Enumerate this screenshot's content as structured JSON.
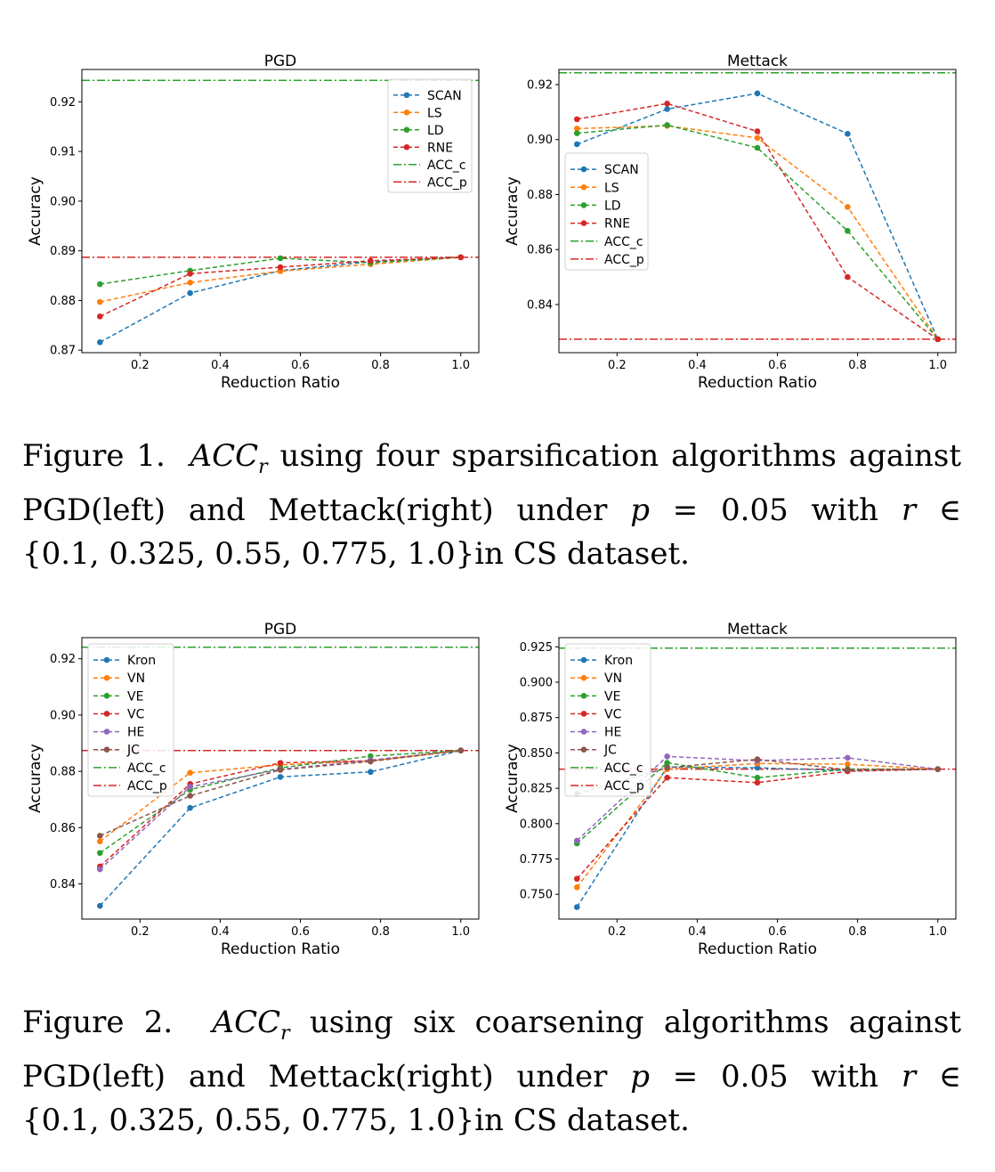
{
  "figures": [
    {
      "caption": {
        "label": "Figure 1.",
        "acc_symbol": "ACC",
        "acc_subscript": "r",
        "line1_text": "using four sparsification algorithms against",
        "line2_prefix": "PGD(left) and Mettack(right) under",
        "p_symbol": "p",
        "equals": "=",
        "p_value": "0.05",
        "with_word": "with",
        "r_symbol": "r",
        "in_symbol": "∈",
        "set_text": "{0.1, 0.325, 0.55, 0.775, 1.0}",
        "dataset_text": "in CS dataset."
      }
    },
    {
      "caption": {
        "label": "Figure 2.",
        "acc_symbol": "ACC",
        "acc_subscript": "r",
        "line1_text": "using six coarsening algorithms against",
        "line2_prefix": "PGD(left) and Mettack(right) under",
        "p_symbol": "p",
        "equals": "=",
        "p_value": "0.05",
        "with_word": "with",
        "r_symbol": "r",
        "in_symbol": "∈",
        "set_text": "{0.1, 0.325, 0.55, 0.775, 1.0}",
        "dataset_text": "in CS dataset."
      }
    }
  ],
  "chart_data": [
    {
      "type": "line",
      "title": "PGD",
      "xlabel": "Reduction Ratio",
      "ylabel": "Accuracy",
      "xlim": [
        0.055,
        1.045
      ],
      "ylim": [
        0.8695,
        0.9265
      ],
      "xticks": [
        "0.2",
        "0.4",
        "0.6",
        "0.8",
        "1.0"
      ],
      "yticks": [
        "0.87",
        "0.88",
        "0.89",
        "0.90",
        "0.91",
        "0.92"
      ],
      "legend": "top-right",
      "x": [
        0.1,
        0.325,
        0.55,
        0.775,
        1.0
      ],
      "series": [
        {
          "name": "SCAN",
          "color": "#1f77b4",
          "values": [
            0.8716,
            0.8815,
            0.886,
            0.8878,
            0.8887
          ]
        },
        {
          "name": "LS",
          "color": "#ff7f0e",
          "values": [
            0.8797,
            0.8836,
            0.8859,
            0.8873,
            0.8887
          ]
        },
        {
          "name": "LD",
          "color": "#2ca02c",
          "values": [
            0.8833,
            0.886,
            0.8885,
            0.8876,
            0.8887
          ]
        },
        {
          "name": "RNE",
          "color": "#d62728",
          "values": [
            0.8768,
            0.8854,
            0.8867,
            0.888,
            0.8887
          ]
        }
      ],
      "hlines": [
        {
          "name": "ACC_c",
          "color": "#2ca02c",
          "value": 0.9243
        },
        {
          "name": "ACC_p",
          "color": "#d62728",
          "value": 0.8887
        }
      ]
    },
    {
      "type": "line",
      "title": "Mettack",
      "xlabel": "Reduction Ratio",
      "ylabel": "Accuracy",
      "xlim": [
        0.055,
        1.045
      ],
      "ylim": [
        0.8225,
        0.9255
      ],
      "xticks": [
        "0.2",
        "0.4",
        "0.6",
        "0.8",
        "1.0"
      ],
      "yticks": [
        "0.84",
        "0.86",
        "0.88",
        "0.90",
        "0.92"
      ],
      "legend": "center-left",
      "x": [
        0.1,
        0.325,
        0.55,
        0.775,
        1.0
      ],
      "series": [
        {
          "name": "SCAN",
          "color": "#1f77b4",
          "values": [
            0.8983,
            0.9111,
            0.9168,
            0.9021,
            0.8274
          ]
        },
        {
          "name": "LS",
          "color": "#ff7f0e",
          "values": [
            0.904,
            0.905,
            0.9006,
            0.8755,
            0.8274
          ]
        },
        {
          "name": "LD",
          "color": "#2ca02c",
          "values": [
            0.9023,
            0.9053,
            0.897,
            0.8668,
            0.8274
          ]
        },
        {
          "name": "RNE",
          "color": "#d62728",
          "values": [
            0.9074,
            0.9131,
            0.903,
            0.85,
            0.8274
          ]
        }
      ],
      "hlines": [
        {
          "name": "ACC_c",
          "color": "#2ca02c",
          "value": 0.9243
        },
        {
          "name": "ACC_p",
          "color": "#d62728",
          "value": 0.8274
        }
      ]
    },
    {
      "type": "line",
      "title": "PGD",
      "xlabel": "Reduction Ratio",
      "ylabel": "Accuracy",
      "xlim": [
        0.055,
        1.045
      ],
      "ylim": [
        0.8275,
        0.9275
      ],
      "xticks": [
        "0.2",
        "0.4",
        "0.6",
        "0.8",
        "1.0"
      ],
      "yticks": [
        "0.84",
        "0.86",
        "0.88",
        "0.90",
        "0.92"
      ],
      "legend": "top-left",
      "x": [
        0.1,
        0.325,
        0.55,
        0.775,
        1.0
      ],
      "series": [
        {
          "name": "Kron",
          "color": "#1f77b4",
          "values": [
            0.8322,
            0.867,
            0.878,
            0.8798,
            0.8874
          ]
        },
        {
          "name": "VN",
          "color": "#ff7f0e",
          "values": [
            0.8551,
            0.8795,
            0.8823,
            0.8837,
            0.8874
          ]
        },
        {
          "name": "VE",
          "color": "#2ca02c",
          "values": [
            0.851,
            0.8735,
            0.8812,
            0.8854,
            0.8874
          ]
        },
        {
          "name": "VC",
          "color": "#d62728",
          "values": [
            0.8462,
            0.8755,
            0.883,
            0.8838,
            0.8874
          ]
        },
        {
          "name": "HE",
          "color": "#9467bd",
          "values": [
            0.8452,
            0.8745,
            0.8807,
            0.884,
            0.8874
          ]
        },
        {
          "name": "JC",
          "color": "#8c564b",
          "values": [
            0.8571,
            0.8713,
            0.8805,
            0.8835,
            0.8874
          ]
        }
      ],
      "hlines": [
        {
          "name": "ACC_c",
          "color": "#2ca02c",
          "value": 0.9241
        },
        {
          "name": "ACC_p",
          "color": "#d62728",
          "value": 0.8874
        }
      ]
    },
    {
      "type": "line",
      "title": "Mettack",
      "xlabel": "Reduction Ratio",
      "ylabel": "Accuracy",
      "xlim": [
        0.055,
        1.045
      ],
      "ylim": [
        0.7325,
        0.9315
      ],
      "xticks": [
        "0.2",
        "0.4",
        "0.6",
        "0.8",
        "1.0"
      ],
      "yticks": [
        "0.750",
        "0.775",
        "0.800",
        "0.825",
        "0.850",
        "0.875",
        "0.900",
        "0.925"
      ],
      "legend": "top-left",
      "x": [
        0.1,
        0.325,
        0.55,
        0.775,
        1.0
      ],
      "series": [
        {
          "name": "Kron",
          "color": "#1f77b4",
          "values": [
            0.741,
            0.84,
            0.8395,
            0.8375,
            0.8385
          ]
        },
        {
          "name": "VN",
          "color": "#ff7f0e",
          "values": [
            0.755,
            0.8385,
            0.8425,
            0.842,
            0.8385
          ]
        },
        {
          "name": "VE",
          "color": "#2ca02c",
          "values": [
            0.786,
            0.843,
            0.8325,
            0.8385,
            0.8385
          ]
        },
        {
          "name": "VC",
          "color": "#d62728",
          "values": [
            0.761,
            0.8325,
            0.829,
            0.837,
            0.8385
          ]
        },
        {
          "name": "HE",
          "color": "#9467bd",
          "values": [
            0.788,
            0.8475,
            0.8445,
            0.8465,
            0.8385
          ]
        },
        {
          "name": "JC",
          "color": "#8c564b",
          "values": [
            0.821,
            0.8395,
            0.8455,
            0.838,
            0.8385
          ]
        }
      ],
      "hlines": [
        {
          "name": "ACC_c",
          "color": "#2ca02c",
          "value": 0.9241
        },
        {
          "name": "ACC_p",
          "color": "#d62728",
          "value": 0.8385
        }
      ]
    }
  ]
}
